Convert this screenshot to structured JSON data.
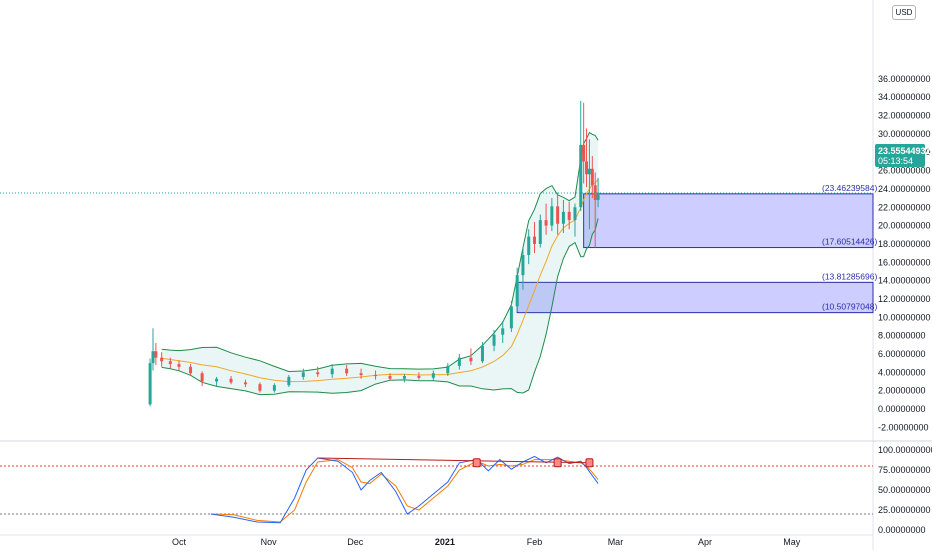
{
  "currency": "USD",
  "colors": {
    "up": "#26a69a",
    "down": "#ef5350",
    "zone_fill": "#7b7bff",
    "zone_border": "#2a2ea8",
    "bb_band": "#1e8c4a",
    "ma": "#f5a623",
    "k_line": "#2962ff",
    "d_line": "#f57c00",
    "price_badge": "#26a69a",
    "trendline": "#b71c1c",
    "level_line": "#e53935"
  },
  "price_axis": {
    "ticks": [
      "36.00000000",
      "34.00000000",
      "32.00000000",
      "30.00000000",
      "28.00000000",
      "26.00000000",
      "24.00000000",
      "22.00000000",
      "20.00000000",
      "18.00000000",
      "16.00000000",
      "14.00000000",
      "12.00000000",
      "10.00000000",
      "8.00000000",
      "6.00000000",
      "4.00000000",
      "2.00000000",
      "0.00000000",
      "-2.00000000"
    ]
  },
  "time_axis": {
    "labels": [
      {
        "text": "Oct",
        "bold": false
      },
      {
        "text": "Nov",
        "bold": false
      },
      {
        "text": "Dec",
        "bold": false
      },
      {
        "text": "2021",
        "bold": true
      },
      {
        "text": "Feb",
        "bold": false
      },
      {
        "text": "Mar",
        "bold": false
      },
      {
        "text": "Apr",
        "bold": false
      },
      {
        "text": "May",
        "bold": false
      }
    ]
  },
  "current_price": {
    "value": "23.55544932",
    "countdown": "05:13:54"
  },
  "zones": [
    {
      "upper_label": "(23.46239584)",
      "lower_label": "(17.60514426)",
      "upper": 23.46239584,
      "lower": 17.60514426
    },
    {
      "upper_label": "(13.81285696)",
      "lower_label": "(10.50797048)",
      "upper": 13.81285696,
      "lower": 10.50797048
    }
  ],
  "oscillator_axis": {
    "ticks": [
      "100.00000000",
      "75.00000000",
      "50.00000000",
      "25.00000000",
      "0.00000000"
    ]
  },
  "chart_data": [
    {
      "type": "candlestick",
      "currency": "USD",
      "ylim": [
        -2,
        36
      ],
      "x_labels": [
        "Oct",
        "Nov",
        "Dec",
        "2021",
        "Feb",
        "Mar",
        "Apr",
        "May"
      ],
      "indicators": [
        "bollinger bands",
        "moving average"
      ],
      "series": [
        {
          "date": "2020-09-21",
          "open": 0.5,
          "high": 5.5,
          "low": 0.3,
          "close": 5.0
        },
        {
          "date": "2020-09-22",
          "open": 5.0,
          "high": 8.8,
          "low": 4.2,
          "close": 6.3
        },
        {
          "date": "2020-09-23",
          "open": 6.3,
          "high": 7.2,
          "low": 4.8,
          "close": 5.6
        },
        {
          "date": "2020-09-25",
          "open": 5.6,
          "high": 6.2,
          "low": 4.6,
          "close": 5.2
        },
        {
          "date": "2020-09-28",
          "open": 5.2,
          "high": 5.6,
          "low": 4.4,
          "close": 4.9
        },
        {
          "date": "2020-10-01",
          "open": 4.9,
          "high": 5.3,
          "low": 4.2,
          "close": 4.6
        },
        {
          "date": "2020-10-05",
          "open": 4.6,
          "high": 4.9,
          "low": 3.6,
          "close": 3.9
        },
        {
          "date": "2020-10-09",
          "open": 3.9,
          "high": 4.1,
          "low": 2.5,
          "close": 3.0
        },
        {
          "date": "2020-10-14",
          "open": 3.0,
          "high": 3.5,
          "low": 2.5,
          "close": 3.3
        },
        {
          "date": "2020-10-19",
          "open": 3.3,
          "high": 3.6,
          "low": 2.7,
          "close": 2.9
        },
        {
          "date": "2020-10-24",
          "open": 2.9,
          "high": 3.2,
          "low": 2.4,
          "close": 2.7
        },
        {
          "date": "2020-10-29",
          "open": 2.7,
          "high": 2.9,
          "low": 1.8,
          "close": 2.0
        },
        {
          "date": "2020-11-03",
          "open": 2.0,
          "high": 2.8,
          "low": 1.8,
          "close": 2.6
        },
        {
          "date": "2020-11-08",
          "open": 2.6,
          "high": 3.7,
          "low": 2.4,
          "close": 3.5
        },
        {
          "date": "2020-11-13",
          "open": 3.5,
          "high": 4.4,
          "low": 3.2,
          "close": 4.0
        },
        {
          "date": "2020-11-18",
          "open": 4.0,
          "high": 4.6,
          "low": 3.5,
          "close": 3.8
        },
        {
          "date": "2020-11-23",
          "open": 3.8,
          "high": 4.9,
          "low": 3.4,
          "close": 4.4
        },
        {
          "date": "2020-11-28",
          "open": 4.4,
          "high": 4.8,
          "low": 3.6,
          "close": 3.9
        },
        {
          "date": "2020-12-03",
          "open": 3.9,
          "high": 4.4,
          "low": 3.3,
          "close": 3.7
        },
        {
          "date": "2020-12-08",
          "open": 3.7,
          "high": 4.2,
          "low": 3.2,
          "close": 3.6
        },
        {
          "date": "2020-12-13",
          "open": 3.6,
          "high": 3.9,
          "low": 3.1,
          "close": 3.3
        },
        {
          "date": "2020-12-18",
          "open": 3.3,
          "high": 3.8,
          "low": 2.9,
          "close": 3.6
        },
        {
          "date": "2020-12-23",
          "open": 3.6,
          "high": 4.0,
          "low": 3.2,
          "close": 3.4
        },
        {
          "date": "2020-12-28",
          "open": 3.4,
          "high": 4.2,
          "low": 3.1,
          "close": 3.9
        },
        {
          "date": "2021-01-02",
          "open": 3.9,
          "high": 5.0,
          "low": 3.6,
          "close": 4.7
        },
        {
          "date": "2021-01-06",
          "open": 4.7,
          "high": 6.0,
          "low": 4.3,
          "close": 5.6
        },
        {
          "date": "2021-01-10",
          "open": 5.6,
          "high": 6.6,
          "low": 4.8,
          "close": 5.2
        },
        {
          "date": "2021-01-14",
          "open": 5.2,
          "high": 7.3,
          "low": 5.0,
          "close": 6.9
        },
        {
          "date": "2021-01-18",
          "open": 6.9,
          "high": 8.6,
          "low": 6.3,
          "close": 8.1
        },
        {
          "date": "2021-01-21",
          "open": 8.1,
          "high": 9.6,
          "low": 7.2,
          "close": 8.8
        },
        {
          "date": "2021-01-24",
          "open": 8.8,
          "high": 11.8,
          "low": 8.4,
          "close": 11.2
        },
        {
          "date": "2021-01-26",
          "open": 11.2,
          "high": 15.4,
          "low": 10.6,
          "close": 14.6
        },
        {
          "date": "2021-01-28",
          "open": 14.6,
          "high": 17.6,
          "low": 13.0,
          "close": 16.8
        },
        {
          "date": "2021-01-30",
          "open": 16.8,
          "high": 19.6,
          "low": 15.8,
          "close": 18.8
        },
        {
          "date": "2021-02-01",
          "open": 18.8,
          "high": 20.4,
          "low": 17.0,
          "close": 18.0
        },
        {
          "date": "2021-02-03",
          "open": 18.0,
          "high": 21.2,
          "low": 17.6,
          "close": 20.6
        },
        {
          "date": "2021-02-05",
          "open": 20.6,
          "high": 22.4,
          "low": 19.0,
          "close": 20.0
        },
        {
          "date": "2021-02-07",
          "open": 20.0,
          "high": 23.0,
          "low": 19.4,
          "close": 22.1
        },
        {
          "date": "2021-02-09",
          "open": 22.1,
          "high": 23.6,
          "low": 19.0,
          "close": 20.2
        },
        {
          "date": "2021-02-11",
          "open": 20.2,
          "high": 22.8,
          "low": 19.2,
          "close": 21.5
        },
        {
          "date": "2021-02-13",
          "open": 21.5,
          "high": 22.6,
          "low": 19.6,
          "close": 20.6
        },
        {
          "date": "2021-02-15",
          "open": 20.6,
          "high": 22.4,
          "low": 18.8,
          "close": 22.0
        },
        {
          "date": "2021-02-17",
          "open": 22.0,
          "high": 33.6,
          "low": 21.6,
          "close": 28.8
        },
        {
          "date": "2021-02-18",
          "open": 28.8,
          "high": 33.4,
          "low": 24.6,
          "close": 27.0
        },
        {
          "date": "2021-02-19",
          "open": 27.0,
          "high": 30.6,
          "low": 24.2,
          "close": 25.6
        },
        {
          "date": "2021-02-20",
          "open": 25.6,
          "high": 29.4,
          "low": 19.6,
          "close": 26.2
        },
        {
          "date": "2021-02-21",
          "open": 26.2,
          "high": 27.6,
          "low": 23.0,
          "close": 24.4
        },
        {
          "date": "2021-02-22",
          "open": 24.4,
          "high": 25.8,
          "low": 17.6,
          "close": 22.8
        },
        {
          "date": "2021-02-23",
          "open": 22.8,
          "high": 25.2,
          "low": 22.0,
          "close": 23.6
        }
      ]
    },
    {
      "type": "line",
      "ylim": [
        0,
        100
      ],
      "x_labels": [
        "Oct",
        "Nov",
        "Dec",
        "2021",
        "Feb",
        "Mar",
        "Apr",
        "May"
      ],
      "reference_levels": [
        80,
        20
      ],
      "series": [
        {
          "values": [
            {
              "date": "2020-10-12",
              "k": 20,
              "d": 20
            },
            {
              "date": "2020-10-20",
              "k": 16,
              "d": 19
            },
            {
              "date": "2020-10-28",
              "k": 10,
              "d": 12
            },
            {
              "date": "2020-11-05",
              "k": 9,
              "d": 10
            },
            {
              "date": "2020-11-10",
              "k": 40,
              "d": 25
            },
            {
              "date": "2020-11-14",
              "k": 75,
              "d": 60
            },
            {
              "date": "2020-11-18",
              "k": 90,
              "d": 85
            },
            {
              "date": "2020-11-25",
              "k": 86,
              "d": 88
            },
            {
              "date": "2020-11-30",
              "k": 72,
              "d": 78
            },
            {
              "date": "2020-12-03",
              "k": 50,
              "d": 60
            },
            {
              "date": "2020-12-06",
              "k": 62,
              "d": 58
            },
            {
              "date": "2020-12-10",
              "k": 72,
              "d": 70
            },
            {
              "date": "2020-12-15",
              "k": 48,
              "d": 55
            },
            {
              "date": "2020-12-19",
              "k": 20,
              "d": 30
            },
            {
              "date": "2020-12-23",
              "k": 30,
              "d": 25
            },
            {
              "date": "2020-12-28",
              "k": 45,
              "d": 40
            },
            {
              "date": "2021-01-02",
              "k": 60,
              "d": 55
            },
            {
              "date": "2021-01-06",
              "k": 84,
              "d": 75
            },
            {
              "date": "2021-01-12",
              "k": 88,
              "d": 86
            },
            {
              "date": "2021-01-16",
              "k": 74,
              "d": 80
            },
            {
              "date": "2021-01-20",
              "k": 88,
              "d": 82
            },
            {
              "date": "2021-01-24",
              "k": 76,
              "d": 80
            },
            {
              "date": "2021-01-28",
              "k": 85,
              "d": 82
            },
            {
              "date": "2021-02-01",
              "k": 92,
              "d": 88
            },
            {
              "date": "2021-02-05",
              "k": 84,
              "d": 88
            },
            {
              "date": "2021-02-09",
              "k": 91,
              "d": 88
            },
            {
              "date": "2021-02-13",
              "k": 83,
              "d": 86
            },
            {
              "date": "2021-02-17",
              "k": 86,
              "d": 84
            },
            {
              "date": "2021-02-19",
              "k": 78,
              "d": 80
            },
            {
              "date": "2021-02-21",
              "k": 68,
              "d": 72
            },
            {
              "date": "2021-02-23",
              "k": 58,
              "d": 63
            }
          ]
        }
      ]
    }
  ]
}
